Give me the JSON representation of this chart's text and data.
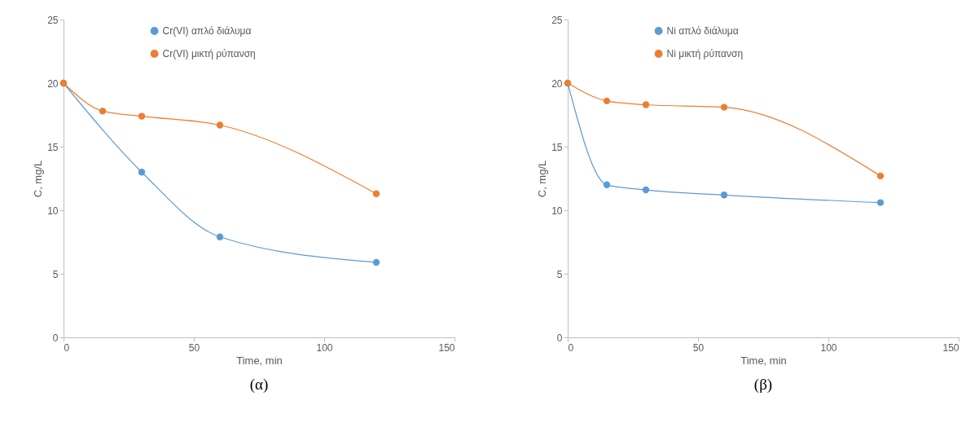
{
  "chart_data": [
    {
      "type": "line",
      "xlabel": "Time, min",
      "ylabel": "C, mg/L",
      "annotations": [
        "(α)"
      ],
      "xlim": [
        0,
        150
      ],
      "xticks": [
        0,
        50,
        100,
        150
      ],
      "ylim": [
        0,
        25
      ],
      "yticks": [
        0,
        5,
        10,
        15,
        20,
        25
      ],
      "grid": false,
      "legend": "top",
      "marker": "circle",
      "line_style": "solid",
      "series": [
        {
          "name": "Cr(VI) απλό διάλυμα",
          "color": "#5b9bd5",
          "x": [
            0,
            30,
            60,
            120
          ],
          "values": [
            20,
            13,
            7.9,
            5.9
          ]
        },
        {
          "name": "Cr(VI) μικτή ρύπανση",
          "color": "#ed7d31",
          "x": [
            0,
            15,
            30,
            60,
            120
          ],
          "values": [
            20,
            17.8,
            17.4,
            16.7,
            11.3
          ]
        }
      ]
    },
    {
      "type": "line",
      "xlabel": "Time, min",
      "ylabel": "C, mg/L",
      "annotations": [
        "(β)"
      ],
      "xlim": [
        0,
        150
      ],
      "xticks": [
        0,
        50,
        100,
        150
      ],
      "ylim": [
        0,
        25
      ],
      "yticks": [
        0,
        5,
        10,
        15,
        20,
        25
      ],
      "grid": false,
      "legend": "top",
      "marker": "circle",
      "line_style": "solid",
      "series": [
        {
          "name": "Ni απλό διάλυμα",
          "color": "#5b9bd5",
          "x": [
            0,
            15,
            30,
            60,
            120
          ],
          "values": [
            20,
            12,
            11.6,
            11.2,
            10.6
          ]
        },
        {
          "name": "Ni μικτή ρύπανση",
          "color": "#ed7d31",
          "x": [
            0,
            15,
            30,
            60,
            120
          ],
          "values": [
            20,
            18.6,
            18.3,
            18.1,
            12.7
          ]
        }
      ]
    }
  ]
}
